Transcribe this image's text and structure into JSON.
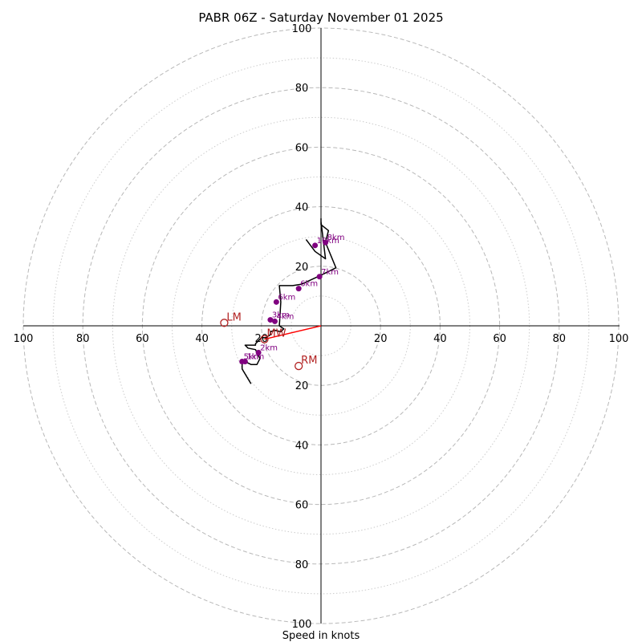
{
  "chart_data": {
    "type": "hodograph",
    "title": "PABR 06Z - Saturday November 01 2025",
    "xlabel": "Speed in knots",
    "rings": [
      20,
      40,
      60,
      80,
      100
    ],
    "minor_rings": [
      10,
      30,
      50,
      70,
      90
    ],
    "ring_labels": [
      "20",
      "40",
      "60",
      "80",
      "100"
    ],
    "limit": 100,
    "trace": [
      [
        -23.5,
        -19.5
      ],
      [
        -26.5,
        -14.5
      ],
      [
        -26.5,
        -11.5
      ],
      [
        -23.5,
        -13
      ],
      [
        -21.5,
        -13
      ],
      [
        -20.5,
        -11
      ],
      [
        -22,
        -8
      ],
      [
        -24.5,
        -7.5
      ],
      [
        -25.5,
        -6.5
      ],
      [
        -22,
        -6.5
      ],
      [
        -22,
        -6
      ],
      [
        -20,
        -4
      ],
      [
        -18.5,
        -4
      ],
      [
        -17,
        -3
      ],
      [
        -17,
        -2
      ],
      [
        -15.5,
        -1.5
      ],
      [
        -13.5,
        -2
      ],
      [
        -12.5,
        -1
      ],
      [
        -14,
        0
      ],
      [
        -13.5,
        8
      ],
      [
        -14,
        13.5
      ],
      [
        -9.5,
        13.5
      ],
      [
        -6.5,
        14
      ],
      [
        0,
        17
      ],
      [
        5,
        19.5
      ],
      [
        1.5,
        28
      ],
      [
        2.5,
        32
      ],
      [
        0,
        34
      ],
      [
        0,
        36
      ],
      [
        0,
        35
      ],
      [
        1.5,
        22.5
      ],
      [
        -2,
        25
      ],
      [
        -5,
        29
      ]
    ],
    "points": [
      {
        "label": "3km",
        "x": -17,
        "y": 2
      },
      {
        "label": "4km",
        "x": -15.5,
        "y": 1.5
      },
      {
        "label": "2km",
        "x": -21,
        "y": -9
      },
      {
        "label": "1km",
        "x": -25.5,
        "y": -12
      },
      {
        "label": "5km",
        "x": -26.5,
        "y": -12
      },
      {
        "label": "6km",
        "x": -15,
        "y": 8
      },
      {
        "label": "6km",
        "x": -7.5,
        "y": 12.5
      },
      {
        "label": "7km",
        "x": -0.5,
        "y": 16.5
      },
      {
        "label": "10km",
        "x": -2,
        "y": 27
      },
      {
        "label": "8km",
        "x": 1.5,
        "y": 28
      }
    ],
    "storm_motion": [
      {
        "label": "LM",
        "x": -32.5,
        "y": 1
      },
      {
        "label": "RM",
        "x": -7.5,
        "y": -13.5
      },
      {
        "label": "MW",
        "x": -19,
        "y": -4.5
      }
    ]
  }
}
